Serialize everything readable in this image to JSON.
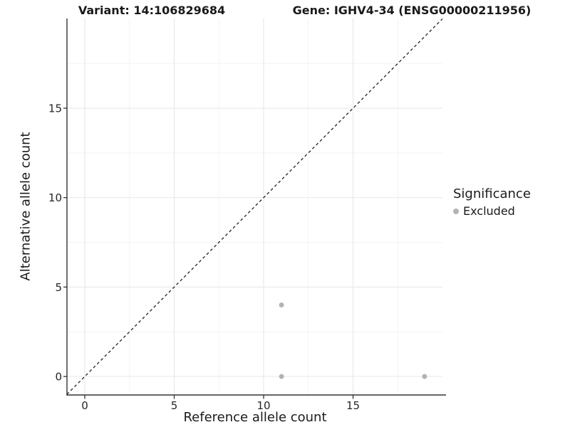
{
  "header": {
    "variant_title": "Variant: 14:106829684",
    "gene_title": "Gene: IGHV4-34 (ENSG00000211956)"
  },
  "legend": {
    "title": "Significance",
    "items": [
      {
        "label": "Excluded",
        "marker_color": "#b3b3b3"
      }
    ]
  },
  "chart_data": {
    "type": "scatter",
    "title_left": "Variant: 14:106829684",
    "title_right": "Gene: IGHV4-34 (ENSG00000211956)",
    "xlabel": "Reference allele count",
    "ylabel": "Alternative allele count",
    "xlim": [
      -1,
      20.1
    ],
    "ylim": [
      -1,
      20.1
    ],
    "x_ticks": [
      0,
      5,
      10,
      15
    ],
    "y_ticks": [
      0,
      5,
      10,
      15
    ],
    "x_minor_ticks": [
      2.5,
      7.5,
      12.5,
      17.5
    ],
    "y_minor_ticks": [
      2.5,
      7.5,
      12.5,
      17.5
    ],
    "grid": "major+minor",
    "legend_position": "right",
    "series": [
      {
        "name": "Excluded",
        "marker_color": "#b3b3b3",
        "points": [
          [
            11,
            4
          ],
          [
            11,
            0
          ],
          [
            19,
            0
          ]
        ]
      }
    ],
    "reference_line": {
      "type": "identity (y = x)",
      "style": "dashed",
      "color": "#1a1a1a"
    }
  },
  "colors": {
    "background": "#ffffff",
    "major_grid": "#e8e8e8",
    "minor_grid": "#f3f3f3",
    "axis_line": "#333333",
    "tick_text": "#262626",
    "title_text": "#1a1a1a",
    "excluded_marker": "#b3b3b3"
  }
}
